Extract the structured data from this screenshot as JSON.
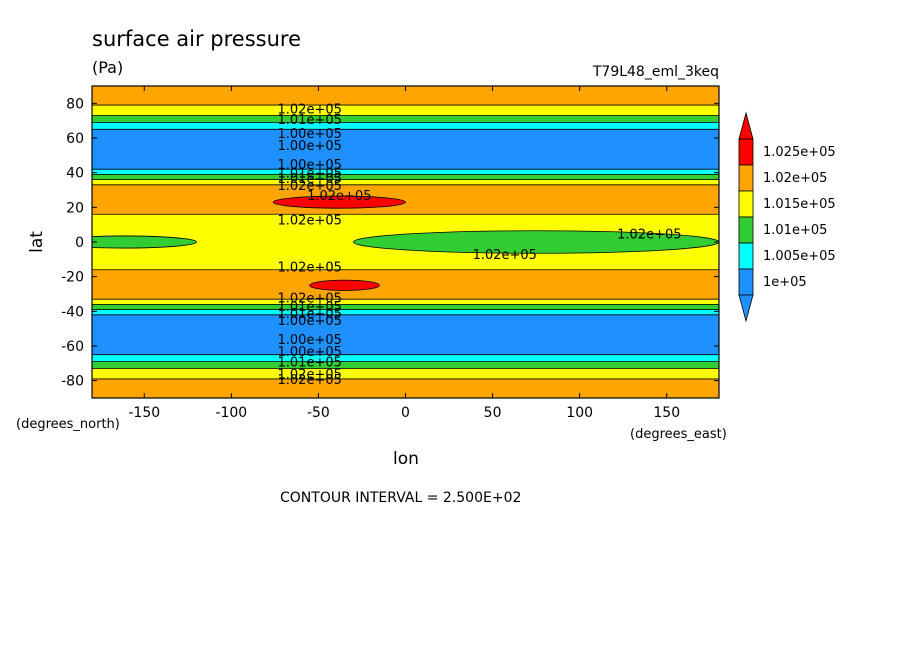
{
  "chart_data": {
    "type": "heatmap",
    "title": "surface air pressure",
    "units": "(Pa)",
    "run_label": "T79L48_eml_3keq",
    "xlabel": "lon",
    "ylabel": "lat",
    "x_units": "(degrees_east)",
    "y_units": "(degrees_north)",
    "xlim": [
      -180,
      180
    ],
    "ylim": [
      -90,
      90
    ],
    "x_ticks": [
      -150,
      -100,
      -50,
      0,
      50,
      100,
      150
    ],
    "y_ticks": [
      -80,
      -60,
      -40,
      -20,
      0,
      20,
      40,
      60,
      80
    ],
    "footer": "CONTOUR INTERVAL = 2.500E+02",
    "colorbar": {
      "labels": [
        "1.025e+05",
        "1.02e+05",
        "1.015e+05",
        "1.01e+05",
        "1.005e+05",
        "1e+05"
      ],
      "colors": [
        "#ff0000",
        "#ffa500",
        "#ffff00",
        "#32cd32",
        "#00ffff",
        "#1e90ff"
      ]
    },
    "regions": [
      {
        "kind": "band",
        "lat": [
          79,
          90
        ],
        "level": "1.02e+05"
      },
      {
        "kind": "band",
        "lat": [
          73,
          79
        ],
        "level": "1.015e+05"
      },
      {
        "kind": "band",
        "lat": [
          69,
          73
        ],
        "level": "1.01e+05"
      },
      {
        "kind": "band",
        "lat": [
          65,
          69
        ],
        "level": "1.005e+05"
      },
      {
        "kind": "band",
        "lat": [
          42,
          65
        ],
        "level": "1e+05"
      },
      {
        "kind": "band",
        "lat": [
          39,
          42
        ],
        "level": "1.005e+05"
      },
      {
        "kind": "band",
        "lat": [
          36,
          39
        ],
        "level": "1.01e+05"
      },
      {
        "kind": "band",
        "lat": [
          33,
          36
        ],
        "level": "1.015e+05"
      },
      {
        "kind": "band",
        "lat": [
          16,
          33
        ],
        "level": "1.02e+05"
      },
      {
        "kind": "band",
        "lat": [
          -16,
          16
        ],
        "level": "1.015e+05"
      },
      {
        "kind": "band",
        "lat": [
          -33,
          -16
        ],
        "level": "1.02e+05"
      },
      {
        "kind": "band",
        "lat": [
          -36,
          -33
        ],
        "level": "1.015e+05"
      },
      {
        "kind": "band",
        "lat": [
          -39,
          -36
        ],
        "level": "1.01e+05"
      },
      {
        "kind": "band",
        "lat": [
          -42,
          -39
        ],
        "level": "1.005e+05"
      },
      {
        "kind": "band",
        "lat": [
          -65,
          -42
        ],
        "level": "1e+05"
      },
      {
        "kind": "band",
        "lat": [
          -69,
          -65
        ],
        "level": "1.005e+05"
      },
      {
        "kind": "band",
        "lat": [
          -73,
          -69
        ],
        "level": "1.01e+05"
      },
      {
        "kind": "band",
        "lat": [
          -79,
          -73
        ],
        "level": "1.015e+05"
      },
      {
        "kind": "band",
        "lat": [
          -90,
          -79
        ],
        "level": "1.02e+05"
      },
      {
        "kind": "blob",
        "lon_center": -38,
        "lat_center": 23,
        "lon_half_width": 38,
        "lat_half_height": 3.5,
        "level": "1.025e+05"
      },
      {
        "kind": "blob",
        "lon_center": -35,
        "lat_center": -25,
        "lon_half_width": 20,
        "lat_half_height": 3.0,
        "level": "1.025e+05"
      },
      {
        "kind": "blob",
        "lon_center": 75,
        "lat_center": 0,
        "lon_half_width": 105,
        "lat_half_height": 6.5,
        "level": "1.01e+05"
      },
      {
        "kind": "blob",
        "lon_center": -162,
        "lat_center": 0,
        "lon_half_width": 42,
        "lat_half_height": 3.5,
        "level": "1.01e+05"
      }
    ],
    "contour_labels": [
      {
        "text": "1.02e+05",
        "lon": -55,
        "lat": 77
      },
      {
        "text": "1.01e+05",
        "lon": -55,
        "lat": 71
      },
      {
        "text": "1.00e+05",
        "lon": -55,
        "lat": 63
      },
      {
        "text": "1.00e+05",
        "lon": -55,
        "lat": 56
      },
      {
        "text": "1.00e+05",
        "lon": -55,
        "lat": 45
      },
      {
        "text": "1.01e+05",
        "lon": -55,
        "lat": 40
      },
      {
        "text": "1.01e+05",
        "lon": -55,
        "lat": 37
      },
      {
        "text": "1.02e+05",
        "lon": -55,
        "lat": 33
      },
      {
        "text": "1.02e+05",
        "lon": -38,
        "lat": 27
      },
      {
        "text": "1.02e+05",
        "lon": -55,
        "lat": 13
      },
      {
        "text": "1.02e+05",
        "lon": 140,
        "lat": 5
      },
      {
        "text": "1.02e+05",
        "lon": 57,
        "lat": -7
      },
      {
        "text": "1.02e+05",
        "lon": -55,
        "lat": -14
      },
      {
        "text": "1.02e+05",
        "lon": -55,
        "lat": -32
      },
      {
        "text": "1.01e+05",
        "lon": -55,
        "lat": -37
      },
      {
        "text": "1.01e+05",
        "lon": -55,
        "lat": -41
      },
      {
        "text": "1.00e+05",
        "lon": -55,
        "lat": -45
      },
      {
        "text": "1.00e+05",
        "lon": -55,
        "lat": -56
      },
      {
        "text": "1.00e+05",
        "lon": -55,
        "lat": -63
      },
      {
        "text": "1.01e+05",
        "lon": -55,
        "lat": -69
      },
      {
        "text": "1.02e+05",
        "lon": -55,
        "lat": -76
      },
      {
        "text": "1.02e+05",
        "lon": -55,
        "lat": -79
      }
    ]
  }
}
